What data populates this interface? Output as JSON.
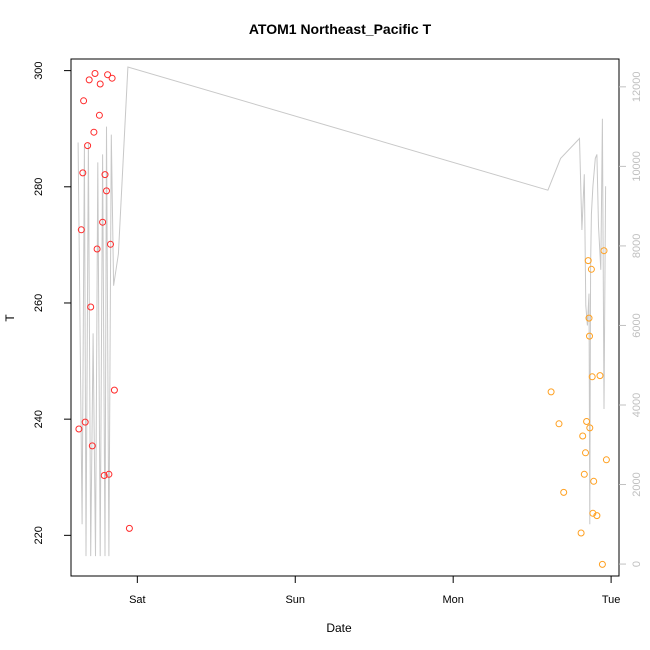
{
  "chart_data": {
    "type": "scatter",
    "title": "ATOM1 Northeast_Pacific T",
    "xlabel": "Date",
    "ylabel": "T",
    "x_ticks": [
      "Sat",
      "Sun",
      "Mon",
      "Tue"
    ],
    "y_ticks": [
      "220",
      "240",
      "260",
      "280",
      "300"
    ],
    "y2_ticks": [
      "0",
      "2000",
      "4000",
      "6000",
      "8000",
      "10000",
      "12000"
    ],
    "xlim_days": [
      -0.42,
      3.05
    ],
    "ylim": [
      213,
      302
    ],
    "y2lim": [
      -300,
      12700
    ],
    "grid": false,
    "colors": {
      "series_a": "#ff2a2a",
      "series_b": "#ffa020",
      "line": "#c8c8c8",
      "axis": "#000000",
      "right_axis": "#c0c0c0"
    },
    "series": [
      {
        "color": "#ff2a2a",
        "points": [
          [
            -0.37,
            238.3
          ],
          [
            -0.355,
            272.6
          ],
          [
            -0.345,
            282.4
          ],
          [
            -0.34,
            294.8
          ],
          [
            -0.33,
            239.5
          ],
          [
            -0.315,
            287.1
          ],
          [
            -0.305,
            298.4
          ],
          [
            -0.295,
            259.3
          ],
          [
            -0.285,
            235.4
          ],
          [
            -0.275,
            289.4
          ],
          [
            -0.268,
            299.5
          ],
          [
            -0.255,
            269.3
          ],
          [
            -0.24,
            292.3
          ],
          [
            -0.235,
            297.7
          ],
          [
            -0.22,
            273.9
          ],
          [
            -0.21,
            230.3
          ],
          [
            -0.205,
            282.1
          ],
          [
            -0.195,
            279.3
          ],
          [
            -0.188,
            299.3
          ],
          [
            -0.18,
            230.5
          ],
          [
            -0.17,
            270.1
          ],
          [
            -0.16,
            298.7
          ],
          [
            -0.145,
            245.0
          ],
          [
            -0.05,
            221.2
          ]
        ]
      },
      {
        "color": "#ffa020",
        "points": [
          [
            2.62,
            244.7
          ],
          [
            2.67,
            239.2
          ],
          [
            2.7,
            227.4
          ],
          [
            2.81,
            220.4
          ],
          [
            2.82,
            237.1
          ],
          [
            2.83,
            230.5
          ],
          [
            2.838,
            234.2
          ],
          [
            2.845,
            239.6
          ],
          [
            2.855,
            267.3
          ],
          [
            2.86,
            257.4
          ],
          [
            2.863,
            254.3
          ],
          [
            2.865,
            238.5
          ],
          [
            2.875,
            265.8
          ],
          [
            2.88,
            247.3
          ],
          [
            2.885,
            223.8
          ],
          [
            2.89,
            229.3
          ],
          [
            2.91,
            223.4
          ],
          [
            2.93,
            247.5
          ],
          [
            2.945,
            215.0
          ],
          [
            2.955,
            269.0
          ],
          [
            2.97,
            233.0
          ]
        ]
      }
    ],
    "line_series": {
      "axis": "right",
      "points": [
        [
          -0.375,
          10600
        ],
        [
          -0.35,
          1000
        ],
        [
          -0.335,
          10500
        ],
        [
          -0.325,
          200
        ],
        [
          -0.31,
          10600
        ],
        [
          -0.295,
          200
        ],
        [
          -0.28,
          5800
        ],
        [
          -0.265,
          200
        ],
        [
          -0.25,
          10100
        ],
        [
          -0.235,
          200
        ],
        [
          -0.22,
          10300
        ],
        [
          -0.205,
          200
        ],
        [
          -0.195,
          11000
        ],
        [
          -0.18,
          200
        ],
        [
          -0.165,
          10800
        ],
        [
          -0.15,
          7000
        ],
        [
          -0.12,
          7800
        ],
        [
          -0.06,
          12500
        ],
        [
          2.6,
          9400
        ],
        [
          2.68,
          10200
        ],
        [
          2.8,
          10700
        ],
        [
          2.815,
          8400
        ],
        [
          2.83,
          9800
        ],
        [
          2.84,
          6500
        ],
        [
          2.85,
          6000
        ],
        [
          2.86,
          6800
        ],
        [
          2.865,
          1000
        ],
        [
          2.87,
          7500
        ],
        [
          2.875,
          8800
        ],
        [
          2.885,
          9500
        ],
        [
          2.9,
          10200
        ],
        [
          2.91,
          10300
        ],
        [
          2.92,
          8500
        ],
        [
          2.935,
          7400
        ],
        [
          2.945,
          11200
        ],
        [
          2.955,
          3900
        ],
        [
          2.965,
          9500
        ]
      ]
    }
  }
}
